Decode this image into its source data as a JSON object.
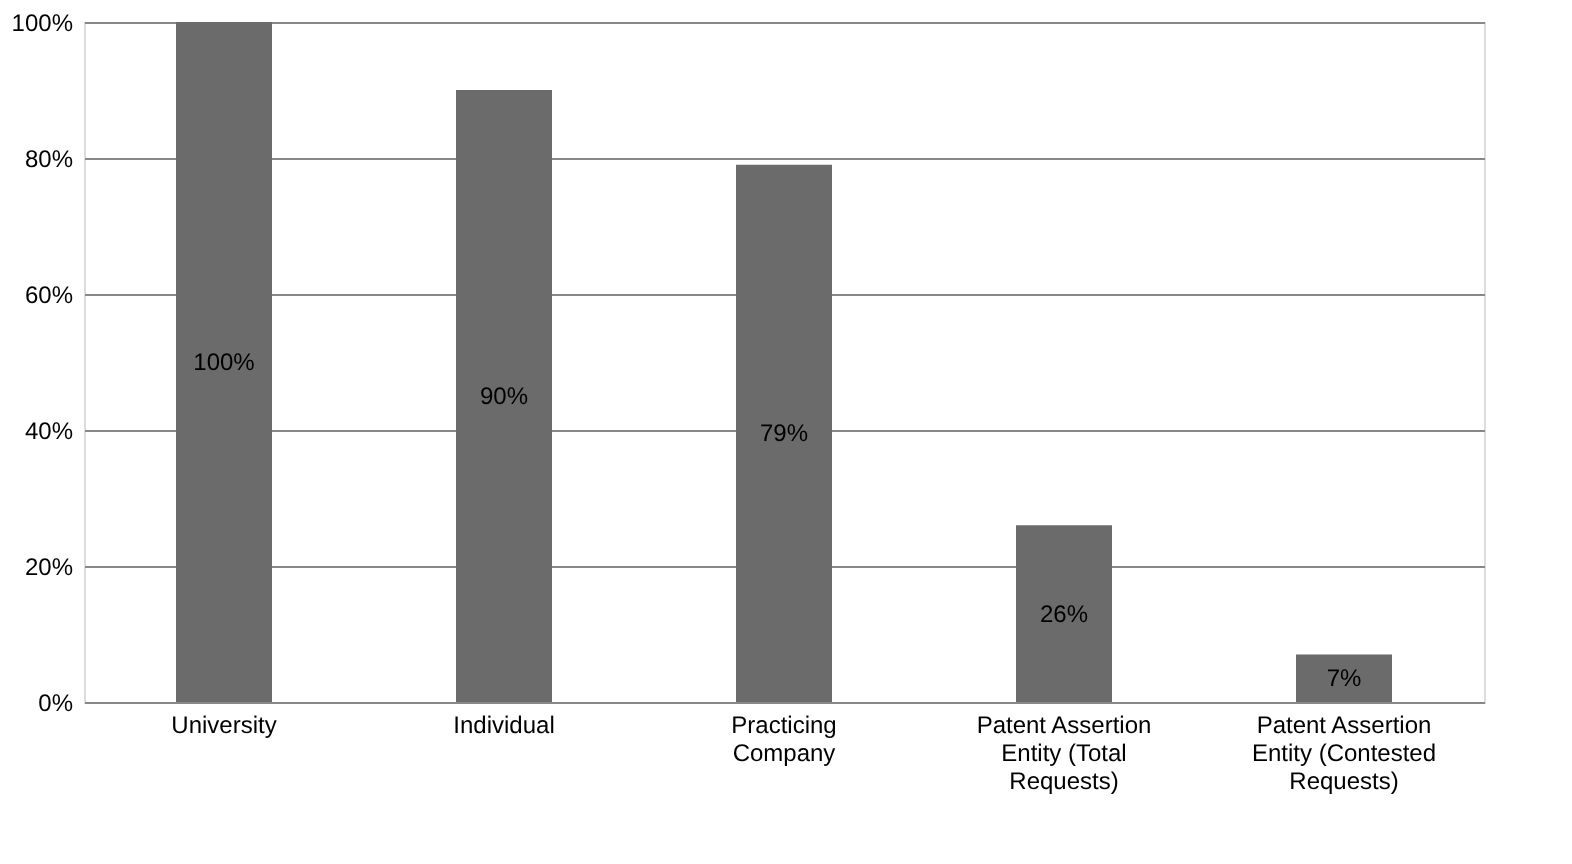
{
  "chart_data": {
    "type": "bar",
    "categories": [
      "University",
      "Individual",
      "Practicing Company",
      "Patent Assertion Entity (Total Requests)",
      "Patent Assertion Entity (Contested Requests)"
    ],
    "values": [
      100,
      90,
      79,
      26,
      7
    ],
    "value_labels": [
      "100%",
      "90%",
      "79%",
      "26%",
      "7%"
    ],
    "color": "#6b6b6b",
    "ylim": [
      0,
      100
    ],
    "yticks": [
      {
        "value": 0,
        "label": "0%"
      },
      {
        "value": 20,
        "label": "20%"
      },
      {
        "value": 40,
        "label": "40%"
      },
      {
        "value": 60,
        "label": "60%"
      },
      {
        "value": 80,
        "label": "80%"
      },
      {
        "value": 100,
        "label": "100%"
      }
    ],
    "grid": "y"
  }
}
